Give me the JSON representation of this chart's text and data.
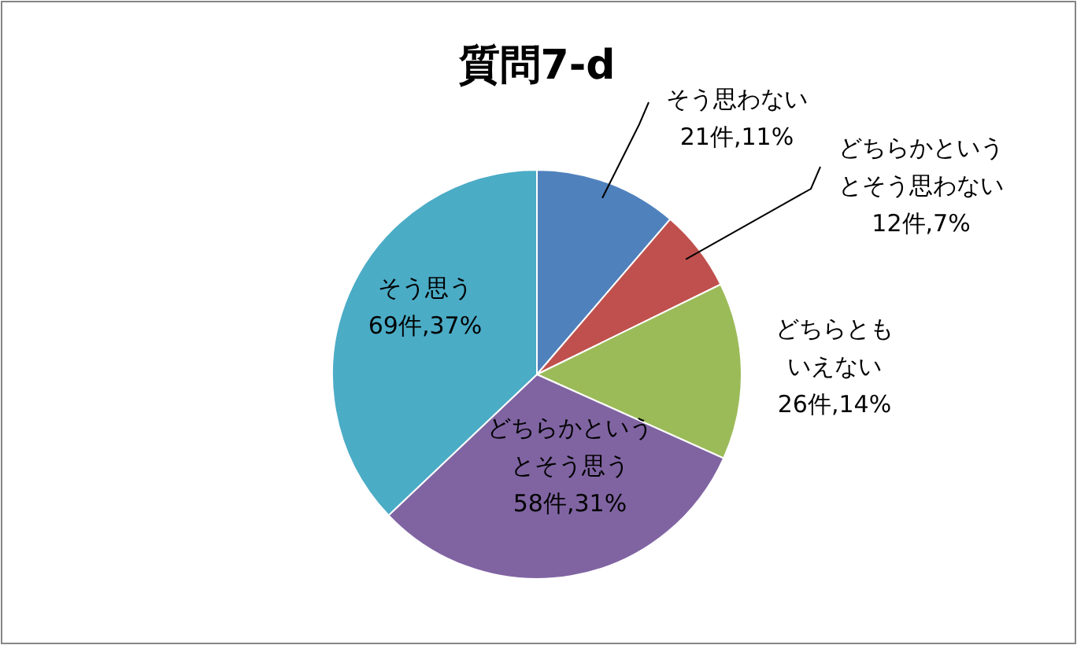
{
  "chart_data": {
    "type": "pie",
    "title": "質問7-d",
    "categories": [
      "そう思わない",
      "どちらかというとそう思わない",
      "どちらともいえない",
      "どちらかというとそう思う",
      "そう思う"
    ],
    "values": [
      21,
      12,
      26,
      58,
      69
    ],
    "colors": [
      "#4f81bd",
      "#c0504d",
      "#9bbb59",
      "#8064a2",
      "#4bacc6"
    ],
    "value_labels": [
      "21件,11%",
      "12件,7%",
      "26件,14%",
      "58件,31%",
      "69件,37%"
    ],
    "legend": false
  }
}
